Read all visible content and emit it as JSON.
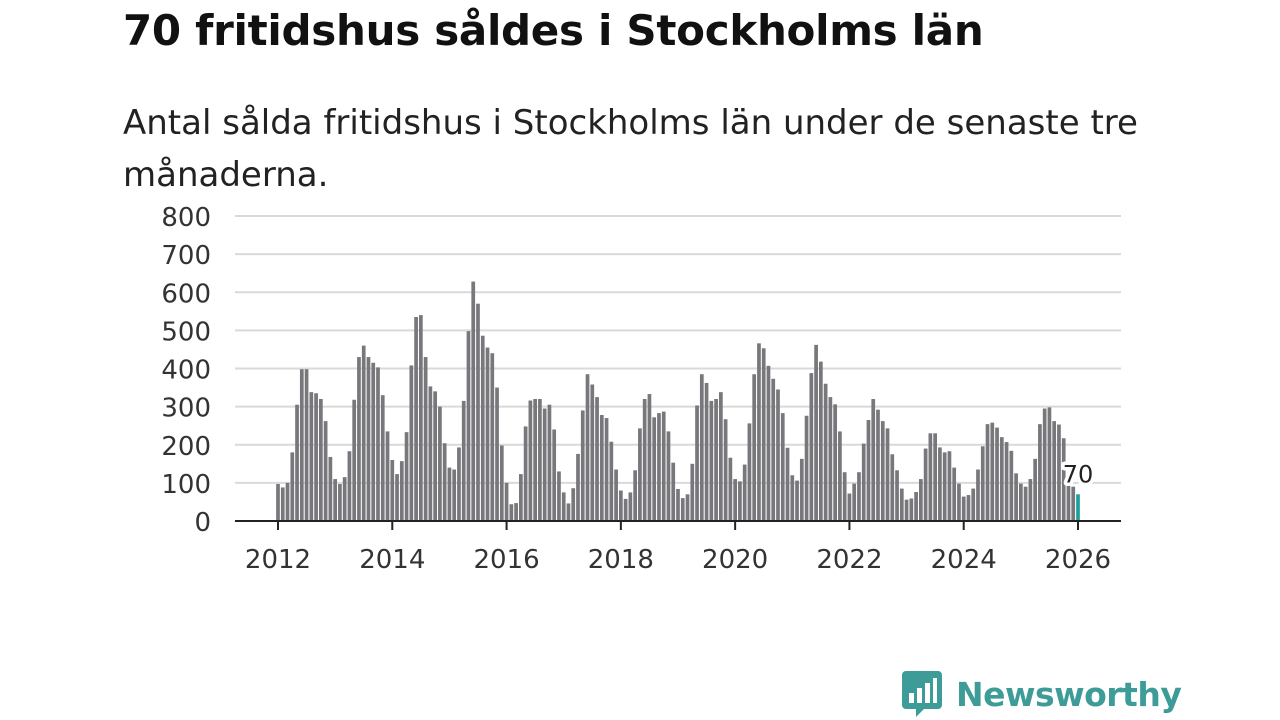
{
  "title": "70 fritidshus såldes i Stockholms län",
  "subtitle": "Antal sålda fritidshus i Stockholms län under de senaste tre månaderna.",
  "brand": {
    "name": "Newsworthy",
    "logo_icon": "newsworthy-bar-chart-icon",
    "color": "#3d9b98"
  },
  "chart_data": {
    "type": "bar",
    "title": "",
    "xlabel": "",
    "ylabel": "",
    "ylim": [
      0,
      800
    ],
    "yticks": [
      "0",
      "100",
      "200",
      "300",
      "400",
      "500",
      "600",
      "700",
      "800"
    ],
    "xticks": [
      "2012",
      "2014",
      "2016",
      "2018",
      "2020",
      "2022",
      "2024",
      "2026"
    ],
    "xrange": [
      2012,
      2026
    ],
    "grid": true,
    "legend": "none",
    "bar_color": "#77777c",
    "highlight_color": "#1f9e9a",
    "highlight_label": "70",
    "start": "2012-01",
    "values": [
      97,
      88,
      100,
      180,
      305,
      398,
      398,
      338,
      335,
      320,
      262,
      168,
      110,
      97,
      115,
      183,
      318,
      430,
      460,
      430,
      415,
      403,
      330,
      235,
      160,
      123,
      157,
      233,
      408,
      535,
      540,
      430,
      353,
      340,
      300,
      204,
      140,
      135,
      193,
      315,
      498,
      628,
      570,
      486,
      455,
      440,
      350,
      198,
      100,
      44,
      47,
      123,
      248,
      316,
      320,
      320,
      295,
      305,
      240,
      130,
      75,
      46,
      86,
      176,
      290,
      385,
      358,
      325,
      278,
      270,
      208,
      135,
      80,
      58,
      75,
      133,
      243,
      320,
      333,
      272,
      283,
      287,
      235,
      153,
      84,
      60,
      70,
      150,
      303,
      385,
      362,
      315,
      320,
      338,
      267,
      166,
      110,
      104,
      148,
      256,
      385,
      466,
      453,
      407,
      373,
      345,
      283,
      192,
      120,
      106,
      163,
      276,
      388,
      462,
      418,
      360,
      325,
      306,
      235,
      128,
      72,
      98,
      128,
      203,
      265,
      320,
      292,
      262,
      243,
      175,
      133,
      85,
      56,
      59,
      76,
      110,
      190,
      230,
      230,
      193,
      180,
      183,
      140,
      98,
      64,
      68,
      85,
      135,
      196,
      254,
      258,
      245,
      220,
      207,
      184,
      125,
      98,
      90,
      110,
      163,
      254,
      295,
      298,
      262,
      253,
      217,
      110,
      90,
      70
    ]
  }
}
